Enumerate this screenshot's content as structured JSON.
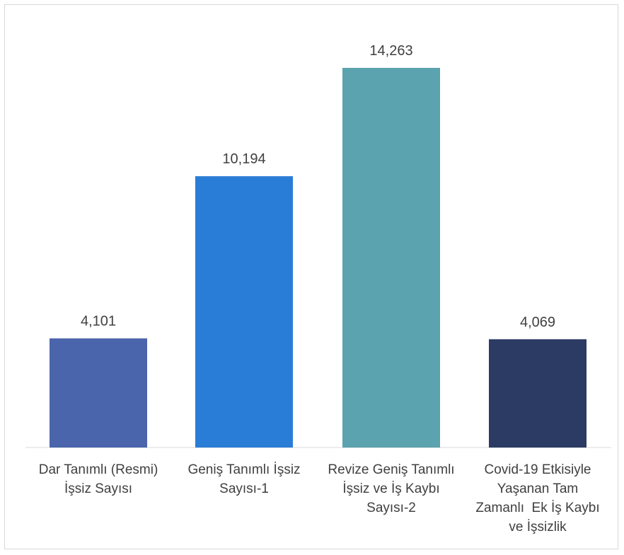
{
  "chart_data": {
    "type": "bar",
    "categories": [
      "Dar Tanımlı (Resmi) İşsiz Sayısı",
      "Geniş Tanımlı İşsiz Sayısı-1",
      "Revize Geniş Tanımlı İşsiz ve İş Kaybı Sayısı-2",
      "Covid-19 Etkisiyle Yaşanan Tam Zamanlı  Ek İş Kaybı ve İşsizlik"
    ],
    "category_lines": [
      [
        "Dar Tanımlı (Resmi)",
        "İşsiz Sayısı"
      ],
      [
        "Geniş Tanımlı İşsiz",
        "Sayısı-1"
      ],
      [
        "Revize Geniş Tanımlı",
        "İşsiz ve İş Kaybı",
        "Sayısı-2"
      ],
      [
        "Covid-19 Etkisiyle",
        "Yaşanan Tam",
        "Zamanlı  Ek İş Kaybı",
        "ve İşsizlik"
      ]
    ],
    "values": [
      4101,
      10194,
      14263,
      4069
    ],
    "value_labels": [
      "4,101",
      "10,194",
      "14,263",
      "4,069"
    ],
    "colors": [
      "#4a65ab",
      "#2a7dd6",
      "#5ba3ae",
      "#2c3b64"
    ],
    "ylim": [
      0,
      16000
    ],
    "grid": false,
    "legend": "none"
  }
}
